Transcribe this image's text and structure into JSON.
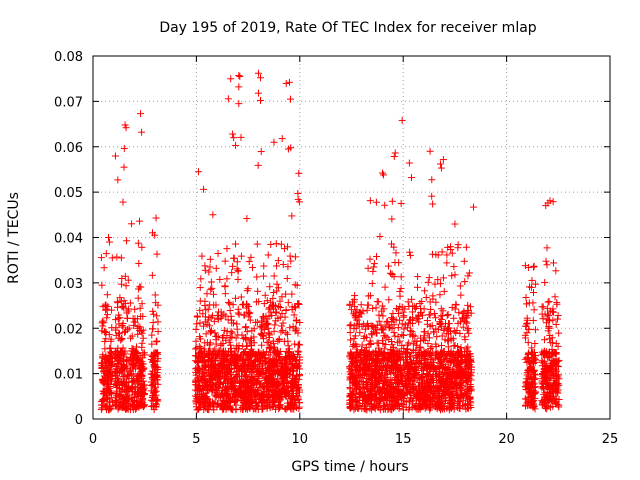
{
  "chart_data": {
    "type": "scatter",
    "title": "Day 195 of 2019, Rate Of TEC Index for receiver mlap",
    "xlabel": "GPS time / hours",
    "ylabel": "ROTI / TECUs",
    "xlim": [
      0,
      25
    ],
    "ylim": [
      0,
      0.08
    ],
    "x_ticks": [
      0,
      5,
      10,
      15,
      20,
      25
    ],
    "x_tick_labels": [
      "0",
      "5",
      "10",
      "15",
      "20",
      "25"
    ],
    "y_ticks": [
      0,
      0.01,
      0.02,
      0.03,
      0.04,
      0.05,
      0.06,
      0.07,
      0.08
    ],
    "y_tick_labels": [
      "0",
      "0.01",
      "0.02",
      "0.03",
      "0.04",
      "0.05",
      "0.06",
      "0.07",
      "0.08"
    ],
    "grid": true,
    "marker": "+",
    "marker_color": "#ff0000",
    "segments": [
      {
        "x": [
          0.4,
          0.95
        ],
        "peak": 0.04
      },
      {
        "x": [
          1.05,
          1.75
        ],
        "peak": 0.065
      },
      {
        "x": [
          1.8,
          2.5
        ],
        "peak": 0.067
      },
      {
        "x": [
          2.8,
          3.15
        ],
        "peak": 0.045
      },
      {
        "x": [
          4.95,
          5.6
        ],
        "peak": 0.054
      },
      {
        "x": [
          5.6,
          6.4
        ],
        "peak": 0.05
      },
      {
        "x": [
          6.4,
          7.3
        ],
        "peak": 0.076
      },
      {
        "x": [
          7.3,
          8.3
        ],
        "peak": 0.076
      },
      {
        "x": [
          8.3,
          9.3
        ],
        "peak": 0.061
      },
      {
        "x": [
          9.3,
          10.0
        ],
        "peak": 0.074
      },
      {
        "x": [
          12.4,
          13.3
        ],
        "peak": 0.027
      },
      {
        "x": [
          13.3,
          14.2
        ],
        "peak": 0.054
      },
      {
        "x": [
          14.2,
          15.3
        ],
        "peak": 0.066
      },
      {
        "x": [
          15.3,
          16.3
        ],
        "peak": 0.056
      },
      {
        "x": [
          16.3,
          17.3
        ],
        "peak": 0.059
      },
      {
        "x": [
          17.3,
          18.3
        ],
        "peak": 0.047
      },
      {
        "x": [
          20.9,
          21.4
        ],
        "peak": 0.034
      },
      {
        "x": [
          21.7,
          22.55
        ],
        "peak": 0.048
      }
    ],
    "highlighted_points": [
      {
        "x": 7.05,
        "y": 0.0757
      },
      {
        "x": 7.1,
        "y": 0.0755
      },
      {
        "x": 8.0,
        "y": 0.0762
      },
      {
        "x": 8.1,
        "y": 0.0752
      },
      {
        "x": 9.5,
        "y": 0.0742
      },
      {
        "x": 7.05,
        "y": 0.0732
      },
      {
        "x": 8.0,
        "y": 0.0718
      },
      {
        "x": 9.55,
        "y": 0.0705
      },
      {
        "x": 8.1,
        "y": 0.0702
      },
      {
        "x": 7.05,
        "y": 0.0695
      },
      {
        "x": 2.3,
        "y": 0.0673
      },
      {
        "x": 1.55,
        "y": 0.0648
      },
      {
        "x": 1.6,
        "y": 0.0642
      },
      {
        "x": 14.95,
        "y": 0.0658
      },
      {
        "x": 2.35,
        "y": 0.0632
      },
      {
        "x": 6.75,
        "y": 0.0628
      },
      {
        "x": 6.8,
        "y": 0.062
      },
      {
        "x": 9.15,
        "y": 0.0618
      },
      {
        "x": 8.75,
        "y": 0.061
      },
      {
        "x": 9.45,
        "y": 0.0595
      },
      {
        "x": 16.3,
        "y": 0.059
      },
      {
        "x": 16.8,
        "y": 0.0562
      },
      {
        "x": 16.85,
        "y": 0.0553
      },
      {
        "x": 1.5,
        "y": 0.0555
      },
      {
        "x": 5.1,
        "y": 0.0545
      },
      {
        "x": 14.0,
        "y": 0.0542
      },
      {
        "x": 14.05,
        "y": 0.0538
      },
      {
        "x": 15.4,
        "y": 0.0532
      },
      {
        "x": 1.2,
        "y": 0.0527
      },
      {
        "x": 22.1,
        "y": 0.0481
      },
      {
        "x": 22.25,
        "y": 0.0479
      },
      {
        "x": 22.0,
        "y": 0.0476
      },
      {
        "x": 18.4,
        "y": 0.0467
      },
      {
        "x": 14.9,
        "y": 0.0475
      },
      {
        "x": 1.45,
        "y": 0.0478
      },
      {
        "x": 2.25,
        "y": 0.0436
      },
      {
        "x": 3.05,
        "y": 0.0443
      },
      {
        "x": 21.2,
        "y": 0.029
      },
      {
        "x": 21.3,
        "y": 0.0335
      },
      {
        "x": 12.65,
        "y": 0.0272
      },
      {
        "x": 0.75,
        "y": 0.04
      },
      {
        "x": 0.8,
        "y": 0.039
      }
    ]
  }
}
